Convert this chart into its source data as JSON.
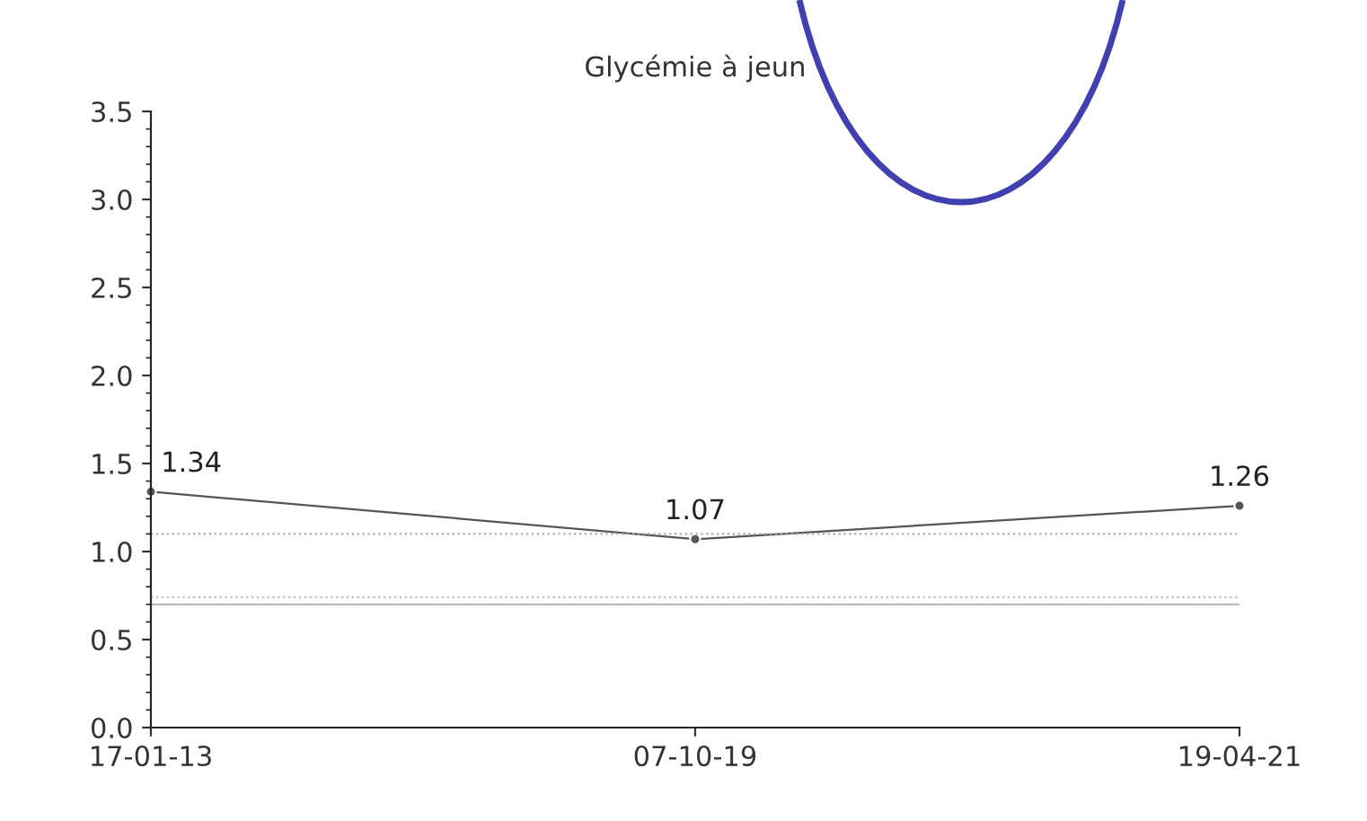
{
  "chart_data": {
    "type": "line",
    "title": "Glycémie à jeun",
    "categories": [
      "17-01-13",
      "07-10-19",
      "19-04-21"
    ],
    "series": [
      {
        "color": "#555555",
        "values": [
          1.34,
          1.07,
          1.26
        ]
      }
    ],
    "ylim": [
      0,
      3.5
    ],
    "yticks": [
      {
        "value": 0,
        "label": "0.0"
      },
      0.5,
      {
        "value": 1,
        "label": "1.0"
      },
      1.5,
      {
        "value": 2,
        "label": "2.0"
      },
      2.5,
      {
        "value": 3,
        "label": "3.0"
      },
      3.5
    ],
    "ref_lines": [
      {
        "axis": "y",
        "value": 1.1,
        "color": "#aaaaaa",
        "line_style": "dotted"
      },
      {
        "axis": "y",
        "value": 0.74,
        "color": "#bbbbbb",
        "line_style": "dotted"
      },
      {
        "axis": "y",
        "value": 0.7,
        "color": "#bbbbbb",
        "line_style": "solid"
      }
    ],
    "data_labels": true,
    "marker": "circle",
    "line_style": "solid",
    "grid": false,
    "legend": false
  }
}
